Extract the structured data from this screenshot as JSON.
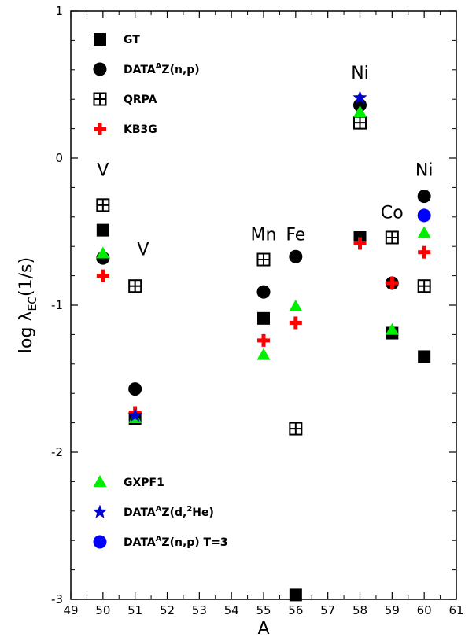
{
  "chart_data": {
    "type": "scatter",
    "xlabel": "A",
    "ylabel_main": "log λ",
    "ylabel_sub": "EC",
    "ylabel_unit": "(1/s)",
    "xlim": [
      49,
      61
    ],
    "ylim": [
      -3,
      1
    ],
    "xticks": [
      "49",
      "50",
      "51",
      "52",
      "53",
      "54",
      "55",
      "56",
      "57",
      "58",
      "59",
      "60",
      "61"
    ],
    "yticks": [
      "-3",
      "-2",
      "-1",
      "0",
      "1"
    ],
    "grid": false,
    "series": [
      {
        "name": "GT",
        "marker": "square",
        "color": "#000000",
        "points": [
          [
            50,
            -0.49
          ],
          [
            51,
            -1.77
          ],
          [
            55,
            -1.09
          ],
          [
            56,
            -2.97
          ],
          [
            58,
            -0.54
          ],
          [
            59,
            -1.19
          ],
          [
            60,
            -1.35
          ]
        ]
      },
      {
        "name": "DATA^AZ(n,p)",
        "marker": "circle",
        "color": "#000000",
        "points": [
          [
            50,
            -0.68
          ],
          [
            51,
            -1.57
          ],
          [
            55,
            -0.91
          ],
          [
            56,
            -0.67
          ],
          [
            58,
            0.36
          ],
          [
            59,
            -0.85
          ],
          [
            60,
            -0.26
          ]
        ]
      },
      {
        "name": "QRPA",
        "marker": "boxed-plus",
        "color": "#000000",
        "points": [
          [
            50,
            -0.32
          ],
          [
            51,
            -0.87
          ],
          [
            55,
            -0.69
          ],
          [
            56,
            -1.84
          ],
          [
            58,
            0.24
          ],
          [
            59,
            -0.54
          ],
          [
            60,
            -0.87
          ]
        ]
      },
      {
        "name": "KB3G",
        "marker": "plus",
        "color": "#ff0000",
        "points": [
          [
            50,
            -0.8
          ],
          [
            51,
            -1.73
          ],
          [
            55,
            -1.24
          ],
          [
            56,
            -1.12
          ],
          [
            58,
            -0.58
          ],
          [
            59,
            -0.85
          ],
          [
            60,
            -0.64
          ]
        ]
      },
      {
        "name": "GXPF1",
        "marker": "triangle",
        "color": "#00ee00",
        "points": [
          [
            50,
            -0.65
          ],
          [
            51,
            -1.77
          ],
          [
            55,
            -1.34
          ],
          [
            56,
            -1.01
          ],
          [
            58,
            0.31
          ],
          [
            59,
            -1.17
          ],
          [
            60,
            -0.51
          ]
        ]
      },
      {
        "name": "DATA^AZ(d,^2He)",
        "marker": "star",
        "color": "#0000cc",
        "points": [
          [
            51,
            -1.75
          ],
          [
            58,
            0.41
          ]
        ]
      },
      {
        "name": "DATA^AZ(n,p) T=3",
        "marker": "circle",
        "color": "#0000ff",
        "points": [
          [
            60,
            -0.39
          ]
        ]
      }
    ],
    "legend_top": [
      {
        "marker": "square",
        "color": "#000000",
        "label_main": "GT",
        "label_sup": "",
        "label_rest": ""
      },
      {
        "marker": "circle",
        "color": "#000000",
        "label_main": "DATA",
        "label_sup": "A",
        "label_rest": "Z(n,p)"
      },
      {
        "marker": "boxed-plus",
        "color": "#000000",
        "label_main": "QRPA",
        "label_sup": "",
        "label_rest": ""
      },
      {
        "marker": "plus",
        "color": "#ff0000",
        "label_main": "KB3G",
        "label_sup": "",
        "label_rest": ""
      }
    ],
    "legend_bottom": [
      {
        "marker": "triangle",
        "color": "#00ee00",
        "label_main": "GXPF1",
        "label_sup": "",
        "label_rest": "",
        "label_sup2": "",
        "label_rest2": ""
      },
      {
        "marker": "star",
        "color": "#0000cc",
        "label_main": "DATA",
        "label_sup": "A",
        "label_rest": "Z(d,",
        "label_sup2": "2",
        "label_rest2": "He)"
      },
      {
        "marker": "circle",
        "color": "#0000ff",
        "label_main": "DATA",
        "label_sup": "A",
        "label_rest": "Z(n,p) T=3",
        "label_sup2": "",
        "label_rest2": ""
      }
    ],
    "annotations": [
      {
        "text": "V",
        "x": 50,
        "y": -0.12
      },
      {
        "text": "V",
        "x": 51.25,
        "y": -0.66
      },
      {
        "text": "Mn",
        "x": 55,
        "y": -0.56
      },
      {
        "text": "Fe",
        "x": 56,
        "y": -0.56
      },
      {
        "text": "Ni",
        "x": 58,
        "y": 0.54
      },
      {
        "text": "Co",
        "x": 59,
        "y": -0.41
      },
      {
        "text": "Ni",
        "x": 60,
        "y": -0.12
      }
    ]
  }
}
